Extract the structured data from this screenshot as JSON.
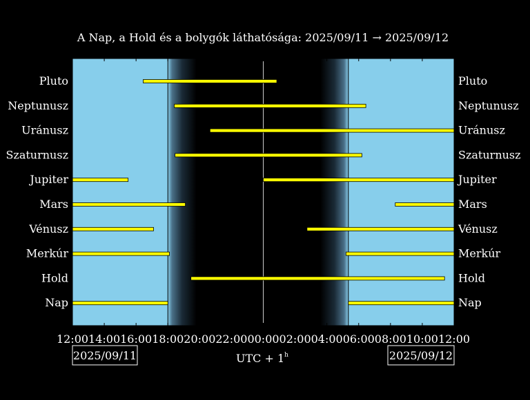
{
  "chart_data": {
    "type": "timeline",
    "title": "A Nap, a Hold és a bolygók láthatósága: 2025/09/11 → 2025/09/12",
    "xlabel": "UTC + 1",
    "xlabel_superscript": "h",
    "x_range_hours": [
      12,
      36
    ],
    "x_ticks": [
      "12:00",
      "14:00",
      "16:00",
      "18:00",
      "20:00",
      "22:00",
      "00:00",
      "02:00",
      "04:00",
      "06:00",
      "08:00",
      "10:00",
      "12:00"
    ],
    "date_left": "2025/09/11",
    "date_right": "2025/09/12",
    "sunset_hour": 18.0,
    "sunrise_hour": 29.35,
    "midnight_hour": 24.0,
    "twilight_dusk_end_hour": 19.8,
    "twilight_dawn_start_hour": 27.6,
    "grid": false,
    "colors": {
      "day_sky": "#87ceeb",
      "night_sky": "#000000",
      "bar": "#ffff00",
      "bar_outline": "#000000",
      "line": "#ffffff"
    },
    "rows": [
      {
        "name": "Pluto",
        "segments": [
          [
            16.45,
            24.85
          ]
        ]
      },
      {
        "name": "Neptunusz",
        "segments": [
          [
            18.4,
            30.45
          ]
        ]
      },
      {
        "name": "Uránusz",
        "segments": [
          [
            20.65,
            36.0
          ]
        ]
      },
      {
        "name": "Szaturnusz",
        "segments": [
          [
            18.45,
            30.2
          ]
        ]
      },
      {
        "name": "Jupiter",
        "segments": [
          [
            12.0,
            15.5
          ],
          [
            24.0,
            36.0
          ]
        ]
      },
      {
        "name": "Mars",
        "segments": [
          [
            12.0,
            19.1
          ],
          [
            32.3,
            36.0
          ]
        ]
      },
      {
        "name": "Vénusz",
        "segments": [
          [
            12.0,
            17.1
          ],
          [
            26.75,
            36.0
          ]
        ]
      },
      {
        "name": "Merkúr",
        "segments": [
          [
            12.0,
            18.1
          ],
          [
            29.2,
            36.0
          ]
        ]
      },
      {
        "name": "Hold",
        "segments": [
          [
            19.45,
            35.4
          ]
        ]
      },
      {
        "name": "Nap",
        "segments": [
          [
            12.0,
            18.0
          ],
          [
            29.35,
            36.0
          ]
        ]
      }
    ]
  }
}
